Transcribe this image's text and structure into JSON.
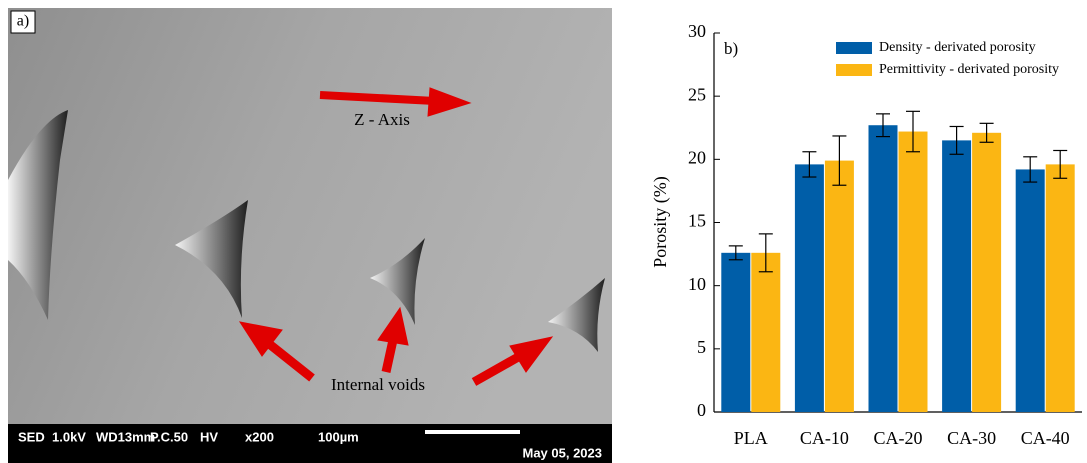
{
  "image_panel": {
    "panel_label": "a)",
    "direction_label": "Z - Axis",
    "voids_label": "Internal voids",
    "info_bar": [
      "SED",
      "1.0kV",
      "WD13mm",
      "P.C.50",
      "HV",
      "x200",
      "100µm"
    ],
    "date": "May 05, 2023"
  },
  "chart_data": {
    "type": "bar",
    "panel_label": "b)",
    "y_label": "Porosity (%)",
    "categories": [
      "PLA",
      "CA-10",
      "CA-20",
      "CA-30",
      "CA-40"
    ],
    "series": [
      {
        "name": "Density - derivated porosity",
        "color": "#005ea8",
        "values": [
          12.6,
          19.6,
          22.7,
          21.5,
          19.2
        ],
        "errors": [
          0.55,
          1.0,
          0.9,
          1.1,
          1.0
        ]
      },
      {
        "name": "Permittivity - derivated porosity",
        "color": "#fbb613",
        "values": [
          12.6,
          19.9,
          22.2,
          22.1,
          19.6
        ],
        "errors": [
          1.5,
          1.95,
          1.6,
          0.75,
          1.1
        ]
      }
    ],
    "ylim": [
      0,
      30
    ],
    "yticks": [
      0,
      5,
      10,
      15,
      20,
      25,
      30
    ],
    "grid": false,
    "legend": "top-right"
  }
}
